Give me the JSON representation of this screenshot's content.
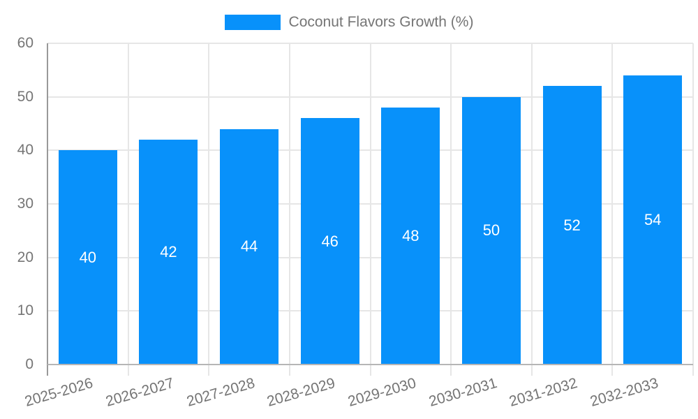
{
  "legend": {
    "label": "Coconut Flavors Growth (%)"
  },
  "chart_data": {
    "type": "bar",
    "series_name": "Coconut Flavors Growth (%)",
    "categories": [
      "2025-2026",
      "2026-2027",
      "2027-2028",
      "2028-2029",
      "2029-2030",
      "2030-2031",
      "2031-2032",
      "2032-2033"
    ],
    "values": [
      40,
      42,
      44,
      46,
      48,
      50,
      52,
      54
    ],
    "title": "",
    "xlabel": "",
    "ylabel": "",
    "ylim": [
      0,
      60
    ],
    "yticks": [
      0,
      10,
      20,
      30,
      40,
      50,
      60
    ],
    "grid": true,
    "bar_labels_visible": true,
    "legend_position": "top-center",
    "colors": {
      "bar": "#0891fa",
      "bar_label": "#ffffff",
      "axis_text": "#757575",
      "gridline": "#e6e6e6",
      "axis_line": "#b6b6b6",
      "y_axis_line": "#999999"
    }
  }
}
